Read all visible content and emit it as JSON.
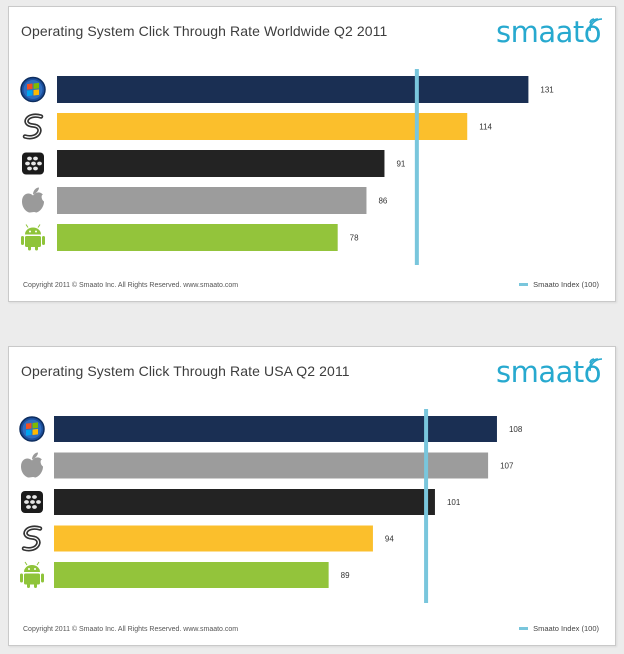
{
  "chart_data": [
    {
      "type": "bar",
      "orientation": "horizontal",
      "title": "Operating System Click Through Rate Worldwide Q2 2011",
      "categories": [
        "windows-icon",
        "symbian-icon",
        "blackberry-icon",
        "apple-icon",
        "android-icon"
      ],
      "values": [
        131,
        114,
        91,
        86,
        78
      ],
      "colors": [
        "#1a2f53",
        "#fbbf2c",
        "#232323",
        "#9c9c9c",
        "#93c43b"
      ],
      "reference_line": {
        "label": "Smaato Index (100)",
        "value": 100,
        "color": "#79c6dc"
      },
      "xlim": [
        0,
        137
      ],
      "grid": false,
      "legend": "bottom-right",
      "brand": "smaato",
      "footer": "Copyright 2011 © Smaato Inc. All Rights Reserved. www.smaato.com"
    },
    {
      "type": "bar",
      "orientation": "horizontal",
      "title": "Operating System Click Through Rate USA Q2 2011",
      "categories": [
        "windows-icon",
        "apple-icon",
        "blackberry-icon",
        "symbian-icon",
        "android-icon"
      ],
      "values": [
        108,
        107,
        101,
        94,
        89
      ],
      "colors": [
        "#1a2f53",
        "#9c9c9c",
        "#232323",
        "#fbbf2c",
        "#93c43b"
      ],
      "reference_line": {
        "label": "Smaato Index (100)",
        "value": 100,
        "color": "#79c6dc"
      },
      "xlim": [
        58,
        114.1
      ],
      "grid": false,
      "legend": "bottom-right",
      "brand": "smaato",
      "footer": "Copyright 2011 © Smaato Inc. All Rights Reserved. www.smaato.com"
    }
  ]
}
